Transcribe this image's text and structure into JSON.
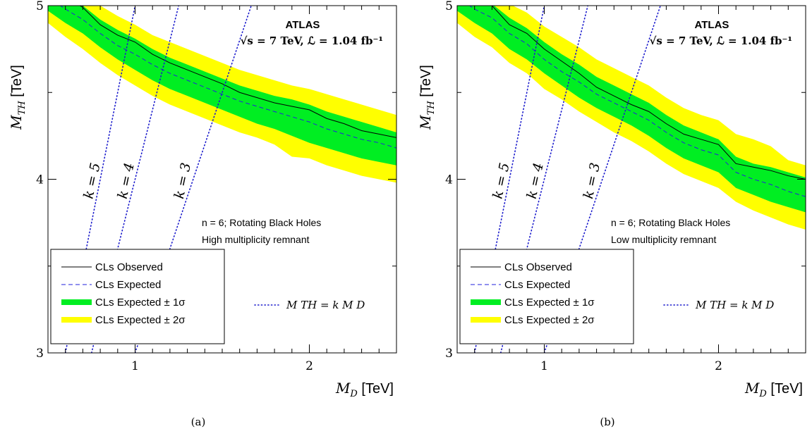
{
  "chart_data": [
    {
      "type": "line",
      "panel_label": "(a)",
      "experiment": "ATLAS",
      "energy_label": "√s = 7 TeV, ℒ = 1.04 fb⁻¹",
      "model_label_line1": "n = 6; Rotating Black Holes",
      "model_label_line2": "High multiplicity remnant",
      "xlabel_var": "M_D",
      "xlabel_unit": "[TeV]",
      "ylabel_var": "M_TH",
      "ylabel_unit": "[TeV]",
      "xlim": [
        0.5,
        2.5
      ],
      "ylim": [
        3,
        5
      ],
      "x_ticks": [
        "1",
        "2"
      ],
      "y_ticks": [
        "3",
        "4",
        "5"
      ],
      "x": [
        0.5,
        0.6,
        0.7,
        0.8,
        0.9,
        1.0,
        1.1,
        1.2,
        1.3,
        1.4,
        1.5,
        1.6,
        1.7,
        1.8,
        1.9,
        2.0,
        2.1,
        2.2,
        2.3,
        2.4,
        2.5
      ],
      "observed": [
        5.12,
        5.05,
        4.99,
        4.89,
        4.83,
        4.79,
        4.72,
        4.67,
        4.63,
        4.59,
        4.55,
        4.5,
        4.47,
        4.44,
        4.42,
        4.4,
        4.35,
        4.32,
        4.28,
        4.26,
        4.24
      ],
      "expected": [
        5.05,
        4.98,
        4.92,
        4.84,
        4.77,
        4.72,
        4.66,
        4.61,
        4.57,
        4.53,
        4.49,
        4.45,
        4.42,
        4.39,
        4.36,
        4.33,
        4.29,
        4.26,
        4.23,
        4.21,
        4.18
      ],
      "band1_low": [
        4.97,
        4.9,
        4.84,
        4.76,
        4.69,
        4.63,
        4.57,
        4.52,
        4.48,
        4.44,
        4.4,
        4.36,
        4.32,
        4.29,
        4.25,
        4.21,
        4.18,
        4.15,
        4.12,
        4.1,
        4.08
      ],
      "band1_high": [
        5.12,
        5.06,
        5.0,
        4.92,
        4.86,
        4.81,
        4.75,
        4.7,
        4.66,
        4.62,
        4.58,
        4.54,
        4.51,
        4.48,
        4.46,
        4.43,
        4.39,
        4.36,
        4.33,
        4.3,
        4.27
      ],
      "band2_low": [
        4.9,
        4.82,
        4.75,
        4.67,
        4.6,
        4.54,
        4.48,
        4.43,
        4.39,
        4.35,
        4.31,
        4.27,
        4.24,
        4.2,
        4.13,
        4.12,
        4.08,
        4.05,
        4.02,
        4.0,
        3.98
      ],
      "band2_high": [
        5.2,
        5.13,
        5.07,
        5.0,
        4.94,
        4.89,
        4.83,
        4.79,
        4.75,
        4.71,
        4.67,
        4.63,
        4.6,
        4.57,
        4.54,
        4.52,
        4.49,
        4.46,
        4.43,
        4.4,
        4.37
      ],
      "k_lines": [
        {
          "label": "k = 5",
          "k": 5
        },
        {
          "label": "k = 4",
          "k": 4
        },
        {
          "label": "k = 3",
          "k": 3
        }
      ],
      "legend": [
        {
          "label": "CLs Observed",
          "style": "solid"
        },
        {
          "label": "CLs Expected",
          "style": "dashed"
        },
        {
          "label": "CLs Expected  ± 1σ",
          "style": "green"
        },
        {
          "label": "CLs Expected  ± 2σ",
          "style": "yellow"
        }
      ],
      "kline_legend": "M_TH = k M_D"
    },
    {
      "type": "line",
      "panel_label": "(b)",
      "experiment": "ATLAS",
      "energy_label": "√s = 7 TeV, ℒ = 1.04 fb⁻¹",
      "model_label_line1": "n = 6; Rotating Black Holes",
      "model_label_line2": "Low multiplicity remnant",
      "xlabel_var": "M_D",
      "xlabel_unit": "[TeV]",
      "ylabel_var": "M_TH",
      "ylabel_unit": "[TeV]",
      "xlim": [
        0.5,
        2.5
      ],
      "ylim": [
        3,
        5
      ],
      "x_ticks": [
        "1",
        "2"
      ],
      "y_ticks": [
        "3",
        "4",
        "5"
      ],
      "x": [
        0.5,
        0.6,
        0.7,
        0.8,
        0.9,
        1.0,
        1.1,
        1.2,
        1.3,
        1.4,
        1.5,
        1.6,
        1.7,
        1.8,
        1.9,
        2.0,
        2.1,
        2.2,
        2.3,
        2.4,
        2.5
      ],
      "observed": [
        5.12,
        5.05,
        5.0,
        4.89,
        4.84,
        4.75,
        4.68,
        4.61,
        4.53,
        4.48,
        4.43,
        4.39,
        4.32,
        4.26,
        4.23,
        4.2,
        4.09,
        4.07,
        4.05,
        4.02,
        4.0
      ],
      "expected": [
        5.05,
        4.98,
        4.93,
        4.84,
        4.78,
        4.69,
        4.62,
        4.56,
        4.49,
        4.44,
        4.39,
        4.34,
        4.27,
        4.21,
        4.17,
        4.14,
        4.04,
        4.0,
        3.97,
        3.93,
        3.9
      ],
      "band1_low": [
        4.97,
        4.9,
        4.84,
        4.75,
        4.69,
        4.61,
        4.54,
        4.47,
        4.41,
        4.36,
        4.31,
        4.25,
        4.18,
        4.12,
        4.08,
        4.04,
        3.95,
        3.91,
        3.87,
        3.84,
        3.81
      ],
      "band1_high": [
        5.12,
        5.06,
        5.01,
        4.93,
        4.87,
        4.79,
        4.72,
        4.66,
        4.59,
        4.54,
        4.49,
        4.44,
        4.37,
        4.31,
        4.27,
        4.23,
        4.13,
        4.09,
        4.07,
        4.04,
        4.01
      ],
      "band2_low": [
        4.9,
        4.82,
        4.76,
        4.67,
        4.61,
        4.52,
        4.46,
        4.39,
        4.33,
        4.27,
        4.22,
        4.16,
        4.09,
        4.03,
        3.99,
        3.95,
        3.87,
        3.82,
        3.78,
        3.74,
        3.71
      ],
      "band2_high": [
        5.2,
        5.14,
        5.09,
        5.01,
        4.96,
        4.88,
        4.82,
        4.76,
        4.69,
        4.64,
        4.59,
        4.54,
        4.47,
        4.41,
        4.37,
        4.34,
        4.26,
        4.23,
        4.19,
        4.11,
        4.08
      ],
      "k_lines": [
        {
          "label": "k = 5",
          "k": 5
        },
        {
          "label": "k = 4",
          "k": 4
        },
        {
          "label": "k = 3",
          "k": 3
        }
      ],
      "legend": [
        {
          "label": "CLs Observed",
          "style": "solid"
        },
        {
          "label": "CLs Expected",
          "style": "dashed"
        },
        {
          "label": "CLs Expected  ± 1σ",
          "style": "green"
        },
        {
          "label": "CLs Expected  ± 2σ",
          "style": "yellow"
        }
      ],
      "kline_legend": "M_TH = k M_D"
    }
  ],
  "colors": {
    "band1": "#00ee22",
    "band2": "#ffff00",
    "observed": "#000000",
    "expected": "#2222dd",
    "kline": "#1a1acc",
    "klabel": "#2222cc"
  }
}
